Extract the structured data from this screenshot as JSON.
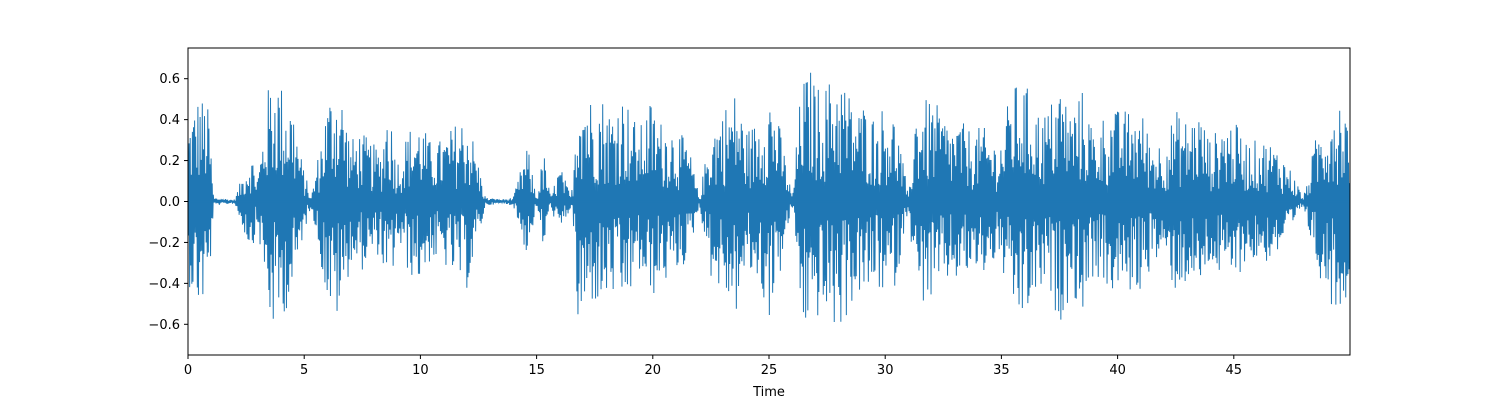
{
  "chart_data": {
    "type": "line",
    "title": "",
    "xlabel": "Time",
    "ylabel": "",
    "xlim": [
      0,
      50
    ],
    "ylim": [
      -0.75,
      0.75
    ],
    "x_ticks": [
      0,
      5,
      10,
      15,
      20,
      25,
      30,
      35,
      40,
      45
    ],
    "x_tick_labels": [
      "0",
      "5",
      "10",
      "15",
      "20",
      "25",
      "30",
      "35",
      "40",
      "45"
    ],
    "y_ticks": [
      -0.6,
      -0.4,
      -0.2,
      0.0,
      0.2,
      0.4,
      0.6
    ],
    "y_tick_labels": [
      "−0.6",
      "−0.4",
      "−0.2",
      "0.0",
      "0.2",
      "0.4",
      "0.6"
    ],
    "grid": false,
    "legend": "none",
    "series_color": "#1f77b4",
    "series": [
      {
        "x": [
          0.0,
          0.5,
          0.9,
          1.1,
          2.0,
          2.7,
          3.0,
          3.5,
          3.8,
          4.1,
          4.5,
          4.9,
          5.3,
          5.7,
          6.0,
          6.3,
          6.6,
          7.0,
          7.4,
          7.9,
          8.3,
          8.6,
          9.0,
          9.5,
          10.0,
          10.4,
          10.8,
          11.2,
          11.6,
          12.0,
          12.3,
          12.8,
          13.5,
          14.0,
          14.3,
          14.6,
          15.0,
          15.3,
          15.6,
          16.0,
          16.5,
          16.8,
          17.0,
          17.4,
          17.8,
          18.2,
          18.6,
          19.0,
          19.4,
          19.9,
          20.3,
          20.7,
          21.0,
          21.5,
          22.0,
          22.5,
          23.0,
          23.6,
          24.0,
          24.5,
          25.0,
          25.5,
          26.0,
          26.4,
          26.8,
          27.2,
          27.6,
          28.0,
          28.4,
          28.8,
          29.2,
          29.6,
          30.0,
          30.5,
          31.0,
          31.3,
          31.6,
          32.0,
          32.4,
          32.8,
          33.2,
          33.7,
          34.2,
          34.7,
          35.0,
          35.4,
          35.8,
          36.2,
          36.6,
          37.0,
          37.5,
          38.0,
          38.5,
          39.0,
          39.5,
          40.0,
          40.5,
          41.0,
          41.5,
          42.0,
          42.5,
          43.0,
          43.5,
          44.0,
          44.5,
          45.0,
          45.5,
          46.0,
          46.5,
          47.0,
          47.5,
          48.0,
          48.5,
          49.0,
          49.5,
          49.9
        ],
        "values": [
          0.4,
          0.54,
          0.45,
          0.02,
          0.01,
          0.25,
          0.13,
          0.6,
          0.66,
          0.55,
          0.5,
          0.2,
          0.02,
          0.3,
          0.5,
          0.6,
          0.55,
          0.3,
          0.35,
          0.29,
          0.25,
          0.52,
          0.2,
          0.36,
          0.4,
          0.3,
          0.3,
          0.34,
          0.4,
          0.43,
          0.3,
          0.02,
          0.01,
          0.02,
          0.15,
          0.28,
          0.02,
          0.25,
          0.02,
          0.18,
          0.02,
          0.68,
          0.62,
          0.5,
          0.53,
          0.45,
          0.55,
          0.47,
          0.35,
          0.5,
          0.4,
          0.4,
          0.35,
          0.3,
          0.02,
          0.37,
          0.46,
          0.55,
          0.35,
          0.4,
          0.58,
          0.35,
          0.02,
          0.6,
          0.65,
          0.55,
          0.6,
          0.66,
          0.55,
          0.45,
          0.5,
          0.4,
          0.5,
          0.4,
          0.02,
          0.48,
          0.5,
          0.5,
          0.45,
          0.38,
          0.4,
          0.35,
          0.37,
          0.3,
          0.32,
          0.55,
          0.6,
          0.55,
          0.45,
          0.45,
          0.6,
          0.45,
          0.55,
          0.35,
          0.45,
          0.45,
          0.45,
          0.45,
          0.3,
          0.3,
          0.45,
          0.4,
          0.45,
          0.3,
          0.4,
          0.4,
          0.3,
          0.3,
          0.3,
          0.25,
          0.15,
          0.02,
          0.3,
          0.47,
          0.55,
          0.45
        ]
      }
    ]
  }
}
